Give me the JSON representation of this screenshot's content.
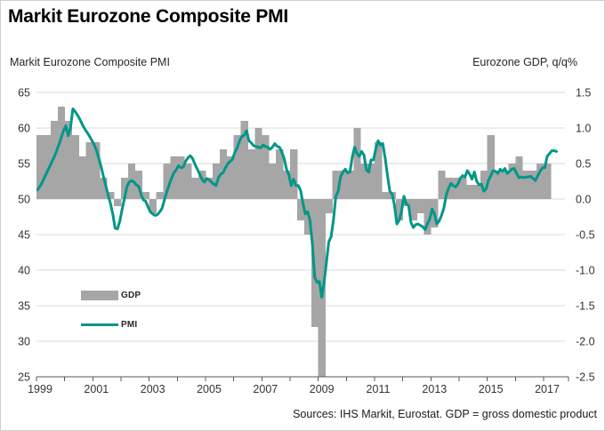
{
  "header": {
    "title": "Markit Eurozone Composite PMI"
  },
  "chart": {
    "left_axis_title": "Markit Eurozone Composite PMI",
    "right_axis_title": "Eurozone GDP, q/q%",
    "legend": {
      "gdp_label": "GDP",
      "pmi_label": "PMI"
    },
    "footer": {
      "source": "Sources: IHS Markit, Eurostat. GDP = gross domestic product"
    }
  },
  "chart_data": {
    "type": "bar+line",
    "title": "Markit Eurozone Composite PMI",
    "left_ylabel": "Markit Eurozone Composite PMI",
    "right_ylabel": "Eurozone GDP, q/q%",
    "left_ylim": [
      25,
      65
    ],
    "right_ylim": [
      -2.5,
      1.5
    ],
    "left_ticks": [
      65,
      60,
      55,
      50,
      45,
      40,
      35,
      30,
      25
    ],
    "right_ticks": [
      "1.5",
      "1.0",
      "0.5",
      "0.0",
      "-0.5",
      "-1.0",
      "-1.5",
      "-2.0",
      "-2.5"
    ],
    "x_tick_labels": [
      "1999",
      "2001",
      "2003",
      "2005",
      "2007",
      "2009",
      "2011",
      "2013",
      "2015",
      "2017"
    ],
    "x_range_years": [
      1999,
      2017.9
    ],
    "grid": "horizontal",
    "legend_position": "inside-left",
    "baseline": {
      "pmi": 50,
      "gdp": 0
    },
    "series": [
      {
        "name": "GDP",
        "type": "bar",
        "axis": "right",
        "unit": "q/q %",
        "frequency": "quarterly",
        "start": "1999Q1",
        "values": [
          0.9,
          0.9,
          1.1,
          1.3,
          1.1,
          0.9,
          0.6,
          0.8,
          0.8,
          0.3,
          0.1,
          -0.1,
          0.3,
          0.5,
          0.4,
          0.1,
          -0.2,
          0.1,
          0.5,
          0.6,
          0.6,
          0.5,
          0.3,
          0.4,
          0.3,
          0.5,
          0.7,
          0.6,
          0.9,
          1.1,
          0.7,
          1.0,
          0.9,
          0.5,
          0.7,
          0.4,
          0.7,
          -0.3,
          -0.5,
          -1.8,
          -2.5,
          -0.2,
          0.4,
          0.4,
          0.4,
          1.0,
          0.5,
          0.5,
          0.8,
          0.1,
          0.1,
          -0.3,
          -0.1,
          -0.3,
          -0.2,
          -0.5,
          -0.4,
          0.4,
          0.3,
          0.3,
          0.3,
          0.2,
          0.2,
          0.4,
          0.9,
          0.4,
          0.4,
          0.5,
          0.6,
          0.4,
          0.4,
          0.5,
          0.5
        ]
      },
      {
        "name": "PMI",
        "type": "line",
        "axis": "left",
        "unit": "index",
        "frequency": "monthly",
        "start": "1999-01",
        "values": [
          51.3,
          51.8,
          52.4,
          53.1,
          53.8,
          54.5,
          55.2,
          55.9,
          56.7,
          57.6,
          58.6,
          59.6,
          60.3,
          58.9,
          60.0,
          62.7,
          62.3,
          61.8,
          61.2,
          60.5,
          59.9,
          59.4,
          58.9,
          58.3,
          57.7,
          56.9,
          55.8,
          54.6,
          53.2,
          51.9,
          50.6,
          49.4,
          47.9,
          45.9,
          45.8,
          46.9,
          48.6,
          50.1,
          51.7,
          52.4,
          52.6,
          52.4,
          52.0,
          51.8,
          50.7,
          49.9,
          49.7,
          48.9,
          48.2,
          47.9,
          47.7,
          47.8,
          48.2,
          48.7,
          49.9,
          51.0,
          52.0,
          52.9,
          53.7,
          54.1,
          54.7,
          54.4,
          54.5,
          55.3,
          55.8,
          56.1,
          55.7,
          54.9,
          54.2,
          53.5,
          52.8,
          52.4,
          52.9,
          52.7,
          52.4,
          52.1,
          51.9,
          53.0,
          53.5,
          53.7,
          54.4,
          55.0,
          55.3,
          55.6,
          56.6,
          57.2,
          58.2,
          58.8,
          59.0,
          59.6,
          58.2,
          57.9,
          57.5,
          57.4,
          57.3,
          57.2,
          57.6,
          57.4,
          57.3,
          57.0,
          57.3,
          57.8,
          57.4,
          57.3,
          56.6,
          55.7,
          54.2,
          53.4,
          51.9,
          52.8,
          51.9,
          51.9,
          51.2,
          49.4,
          47.9,
          48.2,
          47.0,
          43.7,
          39.0,
          38.3,
          38.4,
          36.2,
          38.3,
          41.1,
          44.0,
          44.7,
          47.1,
          50.4,
          51.1,
          53.1,
          53.8,
          54.2,
          53.7,
          53.8,
          55.9,
          57.3,
          56.4,
          56.0,
          56.7,
          56.2,
          54.1,
          53.8,
          55.5,
          55.5,
          57.0,
          58.2,
          57.6,
          57.8,
          55.8,
          53.3,
          51.1,
          50.7,
          49.1,
          46.5,
          47.0,
          48.3,
          50.4,
          49.3,
          49.1,
          46.7,
          46.0,
          46.4,
          46.5,
          46.3,
          46.1,
          45.7,
          46.5,
          47.2,
          48.6,
          47.9,
          46.5,
          46.9,
          47.7,
          48.7,
          50.5,
          51.5,
          52.2,
          51.9,
          51.7,
          52.1,
          52.9,
          53.3,
          53.1,
          54.0,
          53.5,
          52.8,
          53.8,
          52.5,
          52.0,
          52.1,
          51.1,
          51.4,
          52.6,
          53.3,
          54.0,
          53.9,
          53.6,
          54.2,
          53.9,
          54.3,
          53.6,
          53.9,
          54.2,
          54.3,
          53.6,
          53.0,
          53.1,
          53.0,
          53.1,
          53.1,
          53.2,
          52.9,
          52.6,
          53.3,
          53.9,
          54.4,
          54.4,
          56.0,
          56.4,
          56.8,
          56.8,
          56.7
        ]
      }
    ],
    "colors": {
      "gdp_bar": "#a6a6a6",
      "pmi_line": "#009688",
      "gridline": "#d9d9d9",
      "axis": "#595959",
      "tick_text": "#333333",
      "title_text": "#000000"
    }
  }
}
